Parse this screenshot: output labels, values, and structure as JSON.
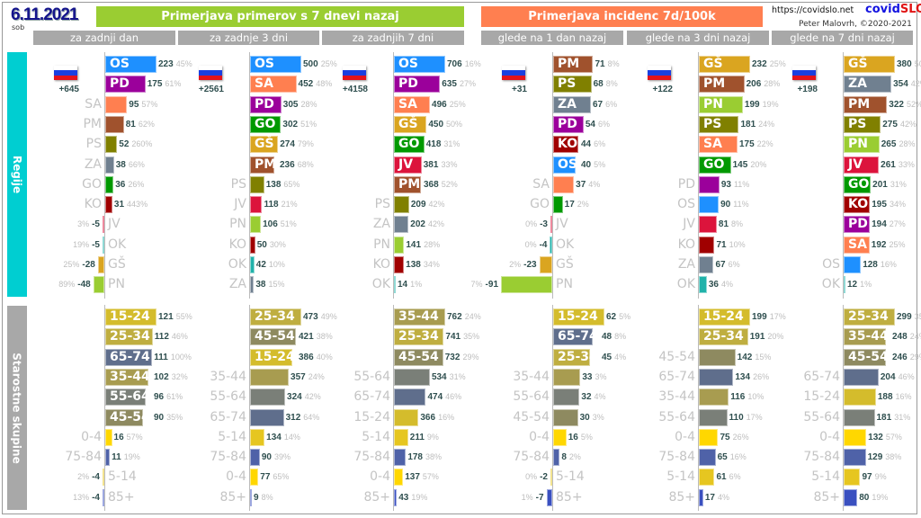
{
  "header": {
    "date": "6.11.2021",
    "weekday": "sob",
    "group_cases": "Primerjava primerov s 7 dnevi nazaj",
    "group_incidence": "Primerjava incidenc 7d/100k",
    "url": "https://covidslo.net",
    "brand_a": "covid",
    "brand_b": "SLO",
    "author": "Peter Malovrh, ©2020-2021"
  },
  "sections": {
    "regions": "Regije",
    "ages": "Starostne skupine"
  },
  "colors": {
    "cases_header": "#9acd32",
    "incidence_header": "#ff7f50",
    "regions_side": "#00ced1",
    "ages_side": "#a8a8a8",
    "OS": "#1e90ff",
    "PD": "#9b009b",
    "SA": "#ff7f50",
    "PM": "#a0522d",
    "PS": "#808000",
    "ZA": "#708090",
    "GO": "#009900",
    "KO": "#a00000",
    "JV": "#dc143c",
    "OK": "#20b2aa",
    "GŠ": "#daa520",
    "PN": "#9acd32",
    "15-24": "#d4bc2c",
    "25-34": "#bfae40",
    "35-44": "#a89c50",
    "45-54": "#8e8a60",
    "55-64": "#7a7f78",
    "65-74": "#5f6e8c",
    "75-84": "#4f62a8",
    "85+": "#3a50c0",
    "0-4": "#ffd700",
    "5-14": "#e6c620"
  },
  "chart_data": [
    {
      "type": "bar",
      "title": "za zadnji dan",
      "flag_delta": "+645",
      "regions": [
        [
          "OS",
          223,
          "45%"
        ],
        [
          "PD",
          175,
          "61%"
        ],
        [
          "SA",
          95,
          "57%"
        ],
        [
          "PM",
          81,
          "62%"
        ],
        [
          "PS",
          52,
          "260%"
        ],
        [
          "ZA",
          38,
          "66%"
        ],
        [
          "GO",
          36,
          "26%"
        ],
        [
          "KO",
          31,
          "443%"
        ],
        [
          "JV",
          -5,
          "3%"
        ],
        [
          "OK",
          -5,
          "19%"
        ],
        [
          "GŠ",
          -28,
          "25%"
        ],
        [
          "PN",
          -48,
          "89%"
        ]
      ],
      "ages": [
        [
          "15-24",
          121,
          "55%"
        ],
        [
          "25-34",
          112,
          "46%"
        ],
        [
          "65-74",
          111,
          "100%"
        ],
        [
          "35-44",
          102,
          "32%"
        ],
        [
          "55-64",
          96,
          "61%"
        ],
        [
          "45-54",
          90,
          "35%"
        ],
        [
          "0-4",
          16,
          "57%"
        ],
        [
          "75-84",
          11,
          "19%"
        ],
        [
          "5-14",
          -4,
          "2%"
        ],
        [
          "85+",
          -4,
          "13%"
        ]
      ]
    },
    {
      "type": "bar",
      "title": "za zadnje 3 dni",
      "flag_delta": "+2561",
      "regions": [
        [
          "OS",
          500,
          "25%"
        ],
        [
          "SA",
          452,
          "48%"
        ],
        [
          "PD",
          305,
          "28%"
        ],
        [
          "GO",
          302,
          "51%"
        ],
        [
          "GŠ",
          274,
          "79%"
        ],
        [
          "PM",
          236,
          "68%"
        ],
        [
          "PS",
          138,
          "65%"
        ],
        [
          "JV",
          118,
          "21%"
        ],
        [
          "PN",
          106,
          "51%"
        ],
        [
          "KO",
          50,
          "30%"
        ],
        [
          "OK",
          42,
          "10%"
        ],
        [
          "ZA",
          38,
          "15%"
        ]
      ],
      "ages": [
        [
          "25-34",
          473,
          "49%"
        ],
        [
          "45-54",
          421,
          "38%"
        ],
        [
          "15-24",
          386,
          "40%"
        ],
        [
          "35-44",
          357,
          "24%"
        ],
        [
          "55-64",
          324,
          "42%"
        ],
        [
          "65-74",
          312,
          "64%"
        ],
        [
          "5-14",
          134,
          "14%"
        ],
        [
          "75-84",
          90,
          "39%"
        ],
        [
          "0-4",
          77,
          "65%"
        ],
        [
          "85+",
          9,
          "8%"
        ]
      ]
    },
    {
      "type": "bar",
      "title": "za zadnjih 7 dni",
      "flag_delta": "+4158",
      "regions": [
        [
          "OS",
          706,
          "16%"
        ],
        [
          "PD",
          635,
          "27%"
        ],
        [
          "SA",
          496,
          "25%"
        ],
        [
          "GŠ",
          450,
          "50%"
        ],
        [
          "GO",
          418,
          "31%"
        ],
        [
          "JV",
          381,
          "33%"
        ],
        [
          "PM",
          368,
          "52%"
        ],
        [
          "PS",
          209,
          "42%"
        ],
        [
          "ZA",
          202,
          "42%"
        ],
        [
          "PN",
          141,
          "28%"
        ],
        [
          "KO",
          138,
          "34%"
        ],
        [
          "OK",
          14,
          "1%"
        ]
      ],
      "ages": [
        [
          "35-44",
          762,
          "24%"
        ],
        [
          "25-34",
          741,
          "35%"
        ],
        [
          "45-54",
          732,
          "29%"
        ],
        [
          "55-64",
          534,
          "31%"
        ],
        [
          "65-74",
          474,
          "46%"
        ],
        [
          "15-24",
          366,
          "16%"
        ],
        [
          "5-14",
          211,
          "9%"
        ],
        [
          "75-84",
          178,
          "38%"
        ],
        [
          "0-4",
          137,
          "57%"
        ],
        [
          "85+",
          43,
          "19%"
        ]
      ]
    },
    {
      "type": "bar",
      "title": "glede na 1 dan nazaj",
      "flag_delta": "+31",
      "regions": [
        [
          "PM",
          71,
          "8%"
        ],
        [
          "PS",
          68,
          "8%"
        ],
        [
          "ZA",
          67,
          "6%"
        ],
        [
          "PD",
          54,
          "6%"
        ],
        [
          "KO",
          44,
          "6%"
        ],
        [
          "OS",
          40,
          "5%"
        ],
        [
          "SA",
          37,
          "4%"
        ],
        [
          "GO",
          17,
          "2%"
        ],
        [
          "JV",
          -3,
          "0%"
        ],
        [
          "OK",
          -4,
          "0%"
        ],
        [
          "GŠ",
          -23,
          "2%"
        ],
        [
          "PN",
          -91,
          "7%"
        ]
      ],
      "ages": [
        [
          "15-24",
          62,
          "5%"
        ],
        [
          "65-74",
          48,
          "8%"
        ],
        [
          "25-34",
          45,
          "4%"
        ],
        [
          "35-44",
          33,
          "3%"
        ],
        [
          "55-64",
          32,
          "4%"
        ],
        [
          "45-54",
          30,
          "3%"
        ],
        [
          "0-4",
          16,
          "5%"
        ],
        [
          "75-84",
          8,
          "2%"
        ],
        [
          "5-14",
          -2,
          "0%"
        ],
        [
          "85+",
          -7,
          "1%"
        ]
      ]
    },
    {
      "type": "bar",
      "title": "glede na 3 dni nazaj",
      "flag_delta": "+122",
      "regions": [
        [
          "GŠ",
          232,
          "25%"
        ],
        [
          "PM",
          206,
          "28%"
        ],
        [
          "PN",
          199,
          "19%"
        ],
        [
          "PS",
          181,
          "24%"
        ],
        [
          "SA",
          175,
          "22%"
        ],
        [
          "GO",
          145,
          "20%"
        ],
        [
          "PD",
          93,
          "11%"
        ],
        [
          "OS",
          90,
          "11%"
        ],
        [
          "JV",
          81,
          "8%"
        ],
        [
          "KO",
          71,
          "10%"
        ],
        [
          "ZA",
          67,
          "6%"
        ],
        [
          "OK",
          36,
          "4%"
        ]
      ],
      "ages": [
        [
          "15-24",
          199,
          "17%"
        ],
        [
          "25-34",
          191,
          "20%"
        ],
        [
          "45-54",
          142,
          "15%"
        ],
        [
          "65-74",
          134,
          "26%"
        ],
        [
          "35-44",
          116,
          "10%"
        ],
        [
          "55-64",
          110,
          "17%"
        ],
        [
          "0-4",
          75,
          "26%"
        ],
        [
          "75-84",
          65,
          "16%"
        ],
        [
          "5-14",
          61,
          "6%"
        ],
        [
          "85+",
          17,
          "4%"
        ]
      ]
    },
    {
      "type": "bar",
      "title": "glede na 7 dni nazaj",
      "flag_delta": "+198",
      "regions": [
        [
          "GŠ",
          380,
          "50%"
        ],
        [
          "ZA",
          354,
          "42%"
        ],
        [
          "PM",
          322,
          "52%"
        ],
        [
          "PS",
          275,
          "42%"
        ],
        [
          "PN",
          265,
          "28%"
        ],
        [
          "JV",
          261,
          "33%"
        ],
        [
          "GO",
          201,
          "31%"
        ],
        [
          "KO",
          195,
          "34%"
        ],
        [
          "PD",
          194,
          "27%"
        ],
        [
          "SA",
          192,
          "25%"
        ],
        [
          "OS",
          128,
          "16%"
        ],
        [
          "OK",
          12,
          "1%"
        ]
      ],
      "ages": [
        [
          "25-34",
          299,
          "35%"
        ],
        [
          "35-44",
          248,
          "24%"
        ],
        [
          "45-54",
          246,
          "29%"
        ],
        [
          "65-74",
          204,
          "46%"
        ],
        [
          "15-24",
          188,
          "16%"
        ],
        [
          "55-64",
          181,
          "31%"
        ],
        [
          "0-4",
          132,
          "57%"
        ],
        [
          "75-84",
          129,
          "38%"
        ],
        [
          "5-14",
          97,
          "9%"
        ],
        [
          "85+",
          80,
          "19%"
        ]
      ]
    }
  ]
}
